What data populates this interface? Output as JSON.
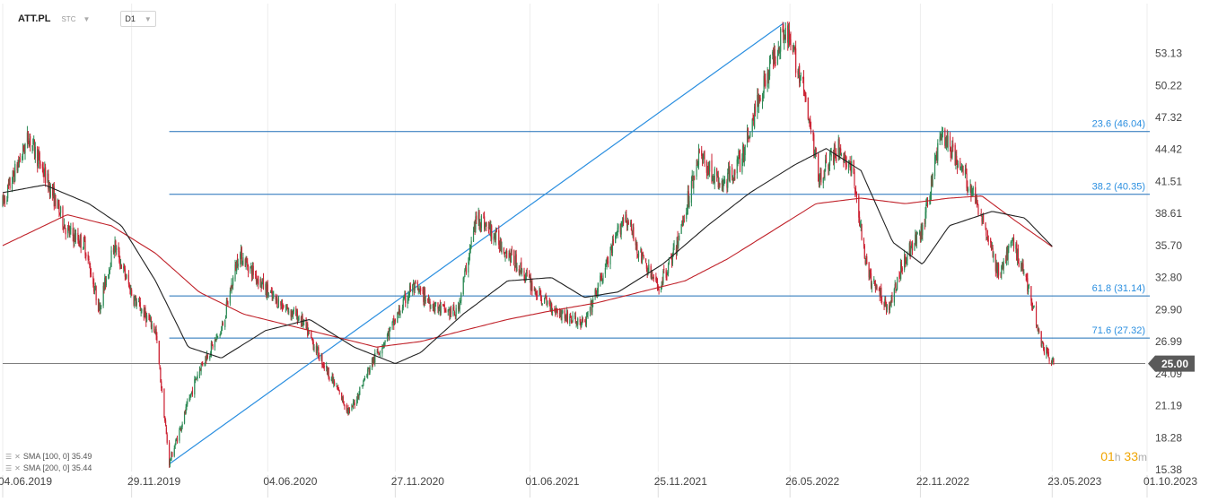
{
  "header": {
    "symbol": "ATT.PL",
    "exchange": "STC",
    "timeframe": "D1"
  },
  "legend": [
    {
      "label": "SMA [100, 0] 35.49",
      "color": "#222222"
    },
    {
      "label": "SMA [200, 0] 35.44",
      "color": "#c0222a"
    }
  ],
  "timer": {
    "hours": "01",
    "h_unit": "h",
    "minutes": "33",
    "m_unit": "m"
  },
  "colors": {
    "up": "#2e8b57",
    "down": "#cc2233",
    "sma100": "#222222",
    "sma200": "#c0222a",
    "fib": "#1e6fb8",
    "trend": "#2b8fe0",
    "price_label_bg": "#5a5a5a"
  },
  "chart_data": {
    "type": "candlestick",
    "ylim": [
      15.38,
      56.5
    ],
    "y_ticks": [
      "53.13",
      "50.22",
      "47.32",
      "44.42",
      "41.51",
      "38.61",
      "35.70",
      "32.80",
      "29.90",
      "26.99",
      "24.09",
      "21.19",
      "18.28",
      "15.38"
    ],
    "x_ticks": [
      "04.06.2019",
      "29.11.2019",
      "04.06.2020",
      "27.11.2020",
      "01.06.2021",
      "25.11.2021",
      "26.05.2022",
      "22.11.2022",
      "23.05.2023",
      "01.10.2023"
    ],
    "x_range": [
      "2019-06-04",
      "2023-10-01"
    ],
    "last_price": "25.00",
    "fib_levels": [
      {
        "label": "23.6 (46.04)",
        "value": 46.04
      },
      {
        "label": "38.2 (40.35)",
        "value": 40.35
      },
      {
        "label": "61.8 (31.14)",
        "value": 31.14
      },
      {
        "label": "71.6 (27.32)",
        "value": 27.32
      }
    ],
    "trend_line": [
      {
        "date": "2020-01-20",
        "value": 15.9
      },
      {
        "date": "2022-05-18",
        "value": 55.9
      }
    ],
    "fib_start_date": "2020-01-20",
    "price_path": [
      [
        "2019-06-04",
        39.5
      ],
      [
        "2019-07-10",
        45.6
      ],
      [
        "2019-08-05",
        41.5
      ],
      [
        "2019-09-01",
        37.0
      ],
      [
        "2019-09-25",
        35.8
      ],
      [
        "2019-10-15",
        30.0
      ],
      [
        "2019-11-05",
        35.8
      ],
      [
        "2019-12-01",
        31.0
      ],
      [
        "2020-01-01",
        28.0
      ],
      [
        "2020-01-20",
        16.0
      ],
      [
        "2020-03-01",
        24.5
      ],
      [
        "2020-04-01",
        28.0
      ],
      [
        "2020-04-25",
        35.0
      ],
      [
        "2020-06-10",
        31.0
      ],
      [
        "2020-07-20",
        29.0
      ],
      [
        "2020-08-20",
        25.0
      ],
      [
        "2020-09-25",
        20.5
      ],
      [
        "2020-10-25",
        25.0
      ],
      [
        "2020-11-20",
        28.0
      ],
      [
        "2020-12-20",
        32.0
      ],
      [
        "2021-01-25",
        30.0
      ],
      [
        "2021-02-20",
        29.5
      ],
      [
        "2021-03-20",
        38.5
      ],
      [
        "2021-04-20",
        36.0
      ],
      [
        "2021-05-20",
        33.5
      ],
      [
        "2021-06-15",
        31.0
      ],
      [
        "2021-07-15",
        29.5
      ],
      [
        "2021-08-15",
        28.5
      ],
      [
        "2021-09-15",
        34.0
      ],
      [
        "2021-10-10",
        38.6
      ],
      [
        "2021-10-30",
        35.0
      ],
      [
        "2021-11-25",
        31.8
      ],
      [
        "2021-12-20",
        35.5
      ],
      [
        "2022-01-20",
        44.0
      ],
      [
        "2022-02-20",
        41.0
      ],
      [
        "2022-03-20",
        43.5
      ],
      [
        "2022-04-15",
        49.5
      ],
      [
        "2022-05-18",
        55.5
      ],
      [
        "2022-06-10",
        51.0
      ],
      [
        "2022-07-05",
        42.0
      ],
      [
        "2022-08-01",
        44.5
      ],
      [
        "2022-08-20",
        42.5
      ],
      [
        "2022-09-10",
        33.0
      ],
      [
        "2022-10-10",
        30.0
      ],
      [
        "2022-10-30",
        34.5
      ],
      [
        "2022-11-25",
        37.0
      ],
      [
        "2022-12-20",
        46.0
      ],
      [
        "2023-01-15",
        43.0
      ],
      [
        "2023-02-15",
        38.5
      ],
      [
        "2023-03-10",
        33.0
      ],
      [
        "2023-03-30",
        36.0
      ],
      [
        "2023-04-20",
        32.0
      ],
      [
        "2023-05-10",
        26.5
      ],
      [
        "2023-05-25",
        25.0
      ]
    ],
    "sma100_path": [
      [
        "2019-06-04",
        40.5
      ],
      [
        "2019-08-01",
        41.2
      ],
      [
        "2019-10-01",
        39.5
      ],
      [
        "2019-11-15",
        37.5
      ],
      [
        "2020-01-01",
        32.5
      ],
      [
        "2020-02-15",
        26.5
      ],
      [
        "2020-04-01",
        25.5
      ],
      [
        "2020-06-01",
        28.0
      ],
      [
        "2020-08-01",
        29.0
      ],
      [
        "2020-10-01",
        26.5
      ],
      [
        "2020-11-27",
        25.0
      ],
      [
        "2021-01-01",
        26.0
      ],
      [
        "2021-03-01",
        29.5
      ],
      [
        "2021-05-01",
        32.5
      ],
      [
        "2021-07-01",
        32.8
      ],
      [
        "2021-08-15",
        31.0
      ],
      [
        "2021-10-01",
        31.5
      ],
      [
        "2021-12-01",
        34.0
      ],
      [
        "2022-02-01",
        37.5
      ],
      [
        "2022-04-01",
        40.5
      ],
      [
        "2022-06-01",
        43.0
      ],
      [
        "2022-07-15",
        44.5
      ],
      [
        "2022-09-01",
        42.5
      ],
      [
        "2022-10-15",
        36.0
      ],
      [
        "2022-11-25",
        34.0
      ],
      [
        "2023-01-01",
        37.5
      ],
      [
        "2023-03-01",
        38.8
      ],
      [
        "2023-04-15",
        38.2
      ],
      [
        "2023-05-25",
        35.5
      ]
    ],
    "sma200_path": [
      [
        "2019-06-04",
        35.7
      ],
      [
        "2019-09-01",
        38.5
      ],
      [
        "2019-11-01",
        37.5
      ],
      [
        "2020-01-01",
        35.0
      ],
      [
        "2020-03-01",
        31.5
      ],
      [
        "2020-05-01",
        29.5
      ],
      [
        "2020-07-01",
        28.5
      ],
      [
        "2020-09-01",
        27.5
      ],
      [
        "2020-11-01",
        26.5
      ],
      [
        "2021-01-01",
        27.0
      ],
      [
        "2021-03-01",
        28.0
      ],
      [
        "2021-05-01",
        29.0
      ],
      [
        "2021-07-01",
        29.8
      ],
      [
        "2021-09-01",
        30.5
      ],
      [
        "2021-11-01",
        31.5
      ],
      [
        "2022-01-01",
        32.5
      ],
      [
        "2022-03-01",
        34.5
      ],
      [
        "2022-05-01",
        37.0
      ],
      [
        "2022-07-01",
        39.5
      ],
      [
        "2022-09-01",
        40.0
      ],
      [
        "2022-11-01",
        39.5
      ],
      [
        "2023-01-01",
        40.0
      ],
      [
        "2023-02-15",
        40.2
      ],
      [
        "2023-04-01",
        38.0
      ],
      [
        "2023-05-25",
        35.5
      ]
    ]
  }
}
